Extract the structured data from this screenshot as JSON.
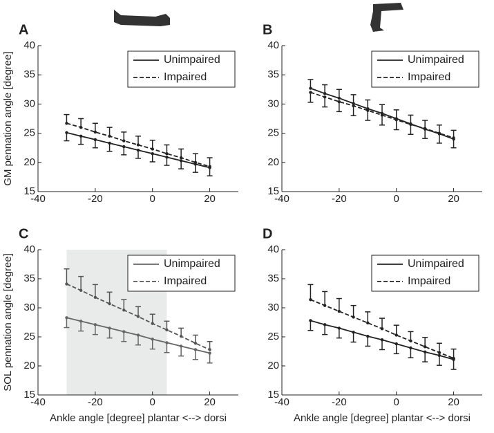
{
  "chart_data": [
    {
      "type": "line",
      "panel": "A",
      "ylabel": "GM pennation angle [degree]",
      "x": [
        -30,
        -25,
        -20,
        -15,
        -10,
        -5,
        0,
        5,
        10,
        15,
        20
      ],
      "xlim": [
        -40,
        30
      ],
      "xticks": [
        -40,
        -20,
        0,
        20
      ],
      "ylim": [
        15,
        40
      ],
      "yticks": [
        15,
        20,
        25,
        30,
        35,
        40
      ],
      "legend": "top-right",
      "series": [
        {
          "name": "Unimpaired",
          "color": "#222222",
          "dashed": false,
          "error_direction": "down",
          "values": [
            25.1,
            24.5,
            23.9,
            23.3,
            22.7,
            22.1,
            21.5,
            20.9,
            20.3,
            19.7,
            19.1
          ],
          "errors": [
            1.4,
            1.4,
            1.4,
            1.4,
            1.4,
            1.4,
            1.4,
            1.4,
            1.4,
            1.4,
            1.4
          ]
        },
        {
          "name": "Impaired",
          "color": "#222222",
          "dashed": true,
          "error_direction": "up",
          "values": [
            26.7,
            26.0,
            25.2,
            24.5,
            23.7,
            23.0,
            22.3,
            21.5,
            20.8,
            20.0,
            19.3
          ],
          "errors": [
            1.5,
            1.5,
            1.5,
            1.5,
            1.5,
            1.5,
            1.5,
            1.5,
            1.5,
            1.5,
            1.5
          ]
        }
      ]
    },
    {
      "type": "line",
      "panel": "B",
      "x": [
        -30,
        -25,
        -20,
        -15,
        -10,
        -5,
        0,
        5,
        10,
        15,
        20
      ],
      "xlim": [
        -40,
        30
      ],
      "xticks": [
        -40,
        -20,
        0,
        20
      ],
      "ylim": [
        15,
        40
      ],
      "yticks": [
        15,
        20,
        25,
        30,
        35,
        40
      ],
      "legend": "top-right",
      "series": [
        {
          "name": "Unimpaired",
          "color": "#222222",
          "dashed": false,
          "error_direction": "up",
          "values": [
            32.7,
            31.8,
            31.0,
            30.1,
            29.2,
            28.4,
            27.5,
            26.6,
            25.7,
            24.9,
            24.0
          ],
          "errors": [
            1.5,
            1.5,
            1.5,
            1.5,
            1.5,
            1.5,
            1.5,
            1.5,
            1.5,
            1.5,
            1.5
          ]
        },
        {
          "name": "Impaired",
          "color": "#222222",
          "dashed": true,
          "error_direction": "down",
          "values": [
            32.0,
            31.2,
            30.4,
            29.7,
            28.9,
            28.1,
            27.3,
            26.5,
            25.8,
            25.0,
            24.2
          ],
          "errors": [
            1.7,
            1.7,
            1.7,
            1.7,
            1.7,
            1.7,
            1.7,
            1.7,
            1.7,
            1.7,
            1.7
          ]
        }
      ]
    },
    {
      "type": "line",
      "panel": "C",
      "ylabel": "SOL pennation angle [degree]",
      "xlabel": "Ankle angle [degree] plantar <--> dorsi",
      "x": [
        -30,
        -25,
        -20,
        -15,
        -10,
        -5,
        0,
        5,
        10,
        15,
        20
      ],
      "xlim": [
        -40,
        30
      ],
      "xticks": [
        -40,
        -20,
        0,
        20
      ],
      "ylim": [
        15,
        40
      ],
      "yticks": [
        15,
        20,
        25,
        30,
        35,
        40
      ],
      "legend": "top-right",
      "shaded_x": [
        -30,
        5
      ],
      "series": [
        {
          "name": "Unimpaired",
          "color": "#666666",
          "dashed": false,
          "error_direction": "down",
          "values": [
            28.3,
            27.7,
            27.1,
            26.5,
            25.9,
            25.3,
            24.6,
            24.0,
            23.4,
            22.8,
            22.2
          ],
          "errors": [
            1.7,
            1.7,
            1.7,
            1.7,
            1.7,
            1.7,
            1.7,
            1.7,
            1.7,
            1.7,
            1.7
          ]
        },
        {
          "name": "Impaired",
          "color": "#555555",
          "dashed": true,
          "error_direction": "up",
          "values": [
            34.1,
            33.0,
            31.8,
            30.7,
            29.6,
            28.5,
            27.3,
            26.2,
            25.1,
            23.9,
            22.8
          ],
          "errors": [
            2.6,
            2.4,
            2.2,
            2.0,
            1.8,
            1.7,
            1.6,
            1.5,
            1.4,
            1.4,
            1.4
          ]
        }
      ]
    },
    {
      "type": "line",
      "panel": "D",
      "xlabel": "Ankle angle [degree] plantar <--> dorsi",
      "x": [
        -30,
        -25,
        -20,
        -15,
        -10,
        -5,
        0,
        5,
        10,
        15,
        20
      ],
      "xlim": [
        -40,
        30
      ],
      "xticks": [
        -40,
        -20,
        0,
        20
      ],
      "ylim": [
        15,
        40
      ],
      "yticks": [
        15,
        20,
        25,
        30,
        35,
        40
      ],
      "legend": "top-right",
      "series": [
        {
          "name": "Unimpaired",
          "color": "#222222",
          "dashed": false,
          "error_direction": "down",
          "values": [
            27.8,
            27.1,
            26.5,
            25.8,
            25.1,
            24.5,
            23.8,
            23.1,
            22.4,
            21.8,
            21.1
          ],
          "errors": [
            1.7,
            1.7,
            1.7,
            1.7,
            1.7,
            1.7,
            1.7,
            1.7,
            1.7,
            1.7,
            1.7
          ]
        },
        {
          "name": "Impaired",
          "color": "#222222",
          "dashed": true,
          "error_direction": "up",
          "values": [
            31.4,
            30.4,
            29.4,
            28.4,
            27.4,
            26.4,
            25.3,
            24.3,
            23.3,
            22.3,
            21.3
          ],
          "errors": [
            2.6,
            2.4,
            2.2,
            2.0,
            1.9,
            1.8,
            1.7,
            1.6,
            1.6,
            1.6,
            1.6
          ]
        }
      ]
    }
  ]
}
